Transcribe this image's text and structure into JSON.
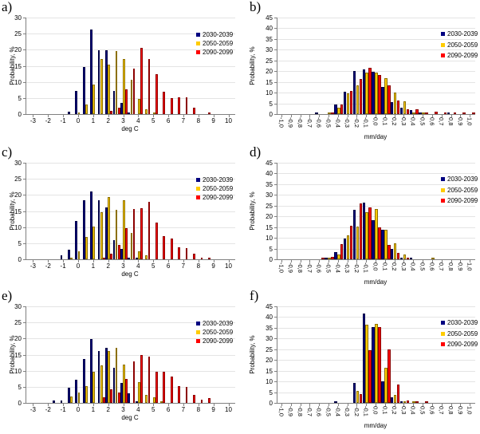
{
  "figure": {
    "background": "#FFFFFF",
    "legend_labels": [
      "2030-2039",
      "2050-2059",
      "2090-2099"
    ],
    "series_colors": [
      "#000080",
      "#FFCC00",
      "#FF0000"
    ],
    "grid_color": "#E4E4E4",
    "axis_color": "#808080",
    "ylabel": "Probability, %"
  },
  "chart_data": [
    {
      "id": "a",
      "panel_label": "a)",
      "type": "bar",
      "title": "",
      "xlabel": "deg C",
      "ylabel": "Probability, %",
      "ylim": [
        0,
        30
      ],
      "ytick_step": 5,
      "xlim": [
        -3.5,
        10.4
      ],
      "grid": true,
      "xtick_rotated": false,
      "xtick_values": [
        -3,
        -2,
        -1,
        0,
        1,
        2,
        3,
        4,
        5,
        6,
        7,
        8,
        9,
        10
      ],
      "xtick_labels": [
        "-3",
        "-2",
        "-1",
        "0",
        "1",
        "2",
        "3",
        "4",
        "5",
        "6",
        "7",
        "8",
        "9",
        "10"
      ],
      "bin_centers": [
        -0.5,
        0,
        0.5,
        1,
        1.5,
        2,
        2.5,
        3,
        3.5,
        4,
        4.5,
        5,
        5.5,
        6,
        6.5,
        7,
        7.5,
        8,
        8.5
      ],
      "legend_position": "top-right",
      "series": [
        {
          "name": "2030-2039",
          "color": "#000080",
          "values": [
            0.7,
            7.3,
            14.6,
            26.2,
            19.8,
            19.8,
            7.1,
            3.6,
            0.6,
            0,
            0,
            0,
            0,
            0,
            0,
            0,
            0,
            0,
            0
          ]
        },
        {
          "name": "2050-2059",
          "color": "#FFCC00",
          "values": [
            0,
            0.3,
            3.0,
            9.3,
            17.0,
            15.5,
            19.5,
            17.2,
            10.7,
            4.6,
            1.6,
            0.3,
            0,
            0,
            0,
            0,
            0,
            0,
            0
          ]
        },
        {
          "name": "2090-2099",
          "color": "#FF0000",
          "values": [
            0,
            0,
            0,
            0,
            0,
            1.0,
            2.0,
            7.7,
            14.2,
            20.5,
            17.0,
            12.4,
            7.0,
            4.9,
            5.3,
            5.1,
            1.9,
            0,
            0.4
          ]
        }
      ]
    },
    {
      "id": "b",
      "panel_label": "b)",
      "type": "bar",
      "title": "",
      "xlabel": "mm/day",
      "ylabel": "Probability, %",
      "ylim": [
        0,
        45
      ],
      "ytick_step": 5,
      "xlim": [
        -1.05,
        1.05
      ],
      "grid": true,
      "xtick_rotated": true,
      "xtick_values": [
        -1,
        -0.9,
        -0.8,
        -0.7,
        -0.6,
        -0.5,
        -0.4,
        -0.3,
        -0.2,
        -0.1,
        0,
        0.1,
        0.2,
        0.3,
        0.4,
        0.5,
        0.6,
        0.7,
        0.8,
        0.9,
        1
      ],
      "xtick_labels": [
        "-1,0",
        "-0,9",
        "-0,8",
        "-0,7",
        "-0,6",
        "-0,5",
        "-0,4",
        "-0,3",
        "-0,2",
        "-0,1",
        "0,0",
        "0,1",
        "0,2",
        "0,3",
        "0,4",
        "0,5",
        "0,6",
        "0,7",
        "0,8",
        "0,9",
        "1,0"
      ],
      "bin_centers": [
        -1,
        -0.9,
        -0.8,
        -0.7,
        -0.6,
        -0.5,
        -0.4,
        -0.3,
        -0.2,
        -0.1,
        0,
        0.1,
        0.2,
        0.3,
        0.4,
        0.5,
        0.6,
        0.7,
        0.8,
        0.9,
        1
      ],
      "legend_position": "top-right",
      "series": [
        {
          "name": "2030-2039",
          "color": "#000080",
          "values": [
            0,
            0,
            0,
            0,
            0.4,
            0,
            4.5,
            10.5,
            20.0,
            21.0,
            19.8,
            12.7,
            5.5,
            3.0,
            2.0,
            0.5,
            0,
            0,
            0.3,
            0,
            0
          ]
        },
        {
          "name": "2050-2059",
          "color": "#FFCC00",
          "values": [
            0,
            0,
            0,
            0,
            0,
            0.5,
            3.0,
            9.7,
            13.3,
            19.5,
            19.3,
            16.8,
            10.0,
            6.1,
            0.6,
            0.8,
            0,
            0,
            0,
            0,
            0
          ]
        },
        {
          "name": "2090-2099",
          "color": "#FF0000",
          "values": [
            0,
            0,
            0,
            0,
            0,
            0.7,
            4.6,
            10.8,
            16.3,
            21.6,
            18.4,
            13.3,
            6.4,
            2.4,
            2.1,
            0.9,
            1.2,
            0.9,
            0.4,
            0.3,
            0.2
          ]
        }
      ]
    },
    {
      "id": "c",
      "panel_label": "c)",
      "type": "bar",
      "title": "",
      "xlabel": "deg C",
      "ylabel": "Probability, %",
      "ylim": [
        0,
        30
      ],
      "ytick_step": 5,
      "xlim": [
        -3.5,
        10.4
      ],
      "grid": true,
      "xtick_rotated": false,
      "xtick_values": [
        -3,
        -2,
        -1,
        0,
        1,
        2,
        3,
        4,
        5,
        6,
        7,
        8,
        9,
        10
      ],
      "xtick_labels": [
        "-3",
        "-2",
        "-1",
        "0",
        "1",
        "2",
        "3",
        "4",
        "5",
        "6",
        "7",
        "8",
        "9",
        "10"
      ],
      "bin_centers": [
        -1,
        -0.5,
        0,
        0.5,
        1,
        1.5,
        2,
        2.5,
        3,
        3.5,
        4,
        4.5,
        5,
        5.5,
        6,
        6.5,
        7,
        7.5,
        8,
        8.5
      ],
      "legend_position": "top-right",
      "series": [
        {
          "name": "2030-2039",
          "color": "#000080",
          "values": [
            1.2,
            3.0,
            12.0,
            18.4,
            21.2,
            18.4,
            16.1,
            5.9,
            3.2,
            0.4,
            0.3,
            0,
            0,
            0,
            0,
            0,
            0,
            0,
            0,
            0
          ]
        },
        {
          "name": "2050-2059",
          "color": "#FFCC00",
          "values": [
            0,
            0.3,
            2.6,
            7.0,
            10.1,
            14.6,
            19.4,
            15.4,
            18.4,
            8.2,
            2.6,
            1.2,
            0,
            0,
            0,
            0,
            0,
            0,
            0,
            0
          ]
        },
        {
          "name": "2090-2099",
          "color": "#FF0000",
          "values": [
            0,
            0,
            0,
            0,
            0,
            0.5,
            1.8,
            4.4,
            9.6,
            15.6,
            15.8,
            17.9,
            11.4,
            7.3,
            6.4,
            3.8,
            3.4,
            1.8,
            0.3,
            0.2
          ]
        }
      ]
    },
    {
      "id": "d",
      "panel_label": "d)",
      "type": "bar",
      "title": "",
      "xlabel": "mm/day",
      "ylabel": "Probability, %",
      "ylim": [
        0,
        45
      ],
      "ytick_step": 5,
      "xlim": [
        -1.05,
        1.05
      ],
      "grid": true,
      "xtick_rotated": true,
      "xtick_values": [
        -1,
        -0.9,
        -0.8,
        -0.7,
        -0.6,
        -0.5,
        -0.4,
        -0.3,
        -0.2,
        -0.1,
        0,
        0.1,
        0.2,
        0.3,
        0.4,
        0.5,
        0.6,
        0.7,
        0.8,
        0.9,
        1
      ],
      "xtick_labels": [
        "-1,0",
        "-0,9",
        "-0,8",
        "-0,7",
        "-0,6",
        "-0,5",
        "-0,4",
        "-0,3",
        "-0,2",
        "-0,1",
        "0,0",
        "0,1",
        "0,2",
        "0,3",
        "0,4",
        "0,5",
        "0,6",
        "0,7",
        "0,8",
        "0,9",
        "1,0"
      ],
      "bin_centers": [
        -1,
        -0.9,
        -0.8,
        -0.7,
        -0.6,
        -0.5,
        -0.4,
        -0.3,
        -0.2,
        -0.1,
        0,
        0.1,
        0.2,
        0.3,
        0.4,
        0.5,
        0.6,
        0.7,
        0.8,
        0.9,
        1
      ],
      "legend_position": "top-right",
      "series": [
        {
          "name": "2030-2039",
          "color": "#000080",
          "values": [
            0,
            0,
            0,
            0,
            0,
            0.5,
            3.2,
            9.7,
            22.9,
            26.3,
            18.1,
            13.7,
            5.0,
            0.7,
            0.5,
            0,
            0,
            0,
            0,
            0,
            0
          ]
        },
        {
          "name": "2050-2059",
          "color": "#FFCC00",
          "values": [
            0,
            0,
            0,
            0,
            0,
            0.4,
            2.2,
            11.3,
            15.4,
            22.1,
            23.5,
            13.9,
            7.4,
            2.4,
            0,
            0,
            0.4,
            0,
            0,
            0,
            0
          ]
        },
        {
          "name": "2090-2099",
          "color": "#FF0000",
          "values": [
            0,
            0,
            0,
            0,
            0.5,
            1.0,
            7.2,
            15.5,
            26.0,
            24.3,
            14.9,
            6.7,
            2.9,
            0.7,
            0,
            0,
            0,
            0,
            0,
            0,
            0
          ]
        }
      ]
    },
    {
      "id": "e",
      "panel_label": "e)",
      "type": "bar",
      "title": "",
      "xlabel": "deg C",
      "ylabel": "Probability, %",
      "ylim": [
        0,
        30
      ],
      "ytick_step": 5,
      "xlim": [
        -3.5,
        10.4
      ],
      "grid": true,
      "xtick_rotated": false,
      "xtick_values": [
        -3,
        -2,
        -1,
        0,
        1,
        2,
        3,
        4,
        5,
        6,
        7,
        8,
        9,
        10
      ],
      "xtick_labels": [
        "-3",
        "-2",
        "-1",
        "0",
        "1",
        "2",
        "3",
        "4",
        "5",
        "6",
        "7",
        "8",
        "9",
        "10"
      ],
      "bin_centers": [
        -1.5,
        -1,
        -0.5,
        0,
        0.5,
        1,
        1.5,
        2,
        2.5,
        3,
        3.5,
        4,
        4.5,
        5,
        5.5,
        6,
        6.5,
        7,
        7.5,
        8,
        8.5
      ],
      "legend_position": "top-right",
      "series": [
        {
          "name": "2030-2039",
          "color": "#000080",
          "values": [
            0.8,
            0.7,
            4.6,
            7.3,
            13.7,
            19.8,
            16.1,
            17.1,
            10.9,
            6.3,
            3.0,
            0.4,
            0,
            0,
            0,
            0,
            0,
            0,
            0,
            0,
            0
          ]
        },
        {
          "name": "2050-2059",
          "color": "#FFCC00",
          "values": [
            0,
            0,
            2.0,
            3.3,
            5.1,
            9.6,
            11.6,
            16.2,
            17.2,
            12.0,
            0,
            6.4,
            2.4,
            1.8,
            0.4,
            0,
            0,
            0,
            0,
            0,
            0
          ]
        },
        {
          "name": "2090-2099",
          "color": "#FF0000",
          "values": [
            0,
            0,
            0,
            0,
            0,
            0,
            1.7,
            4.3,
            3.3,
            7.5,
            12.8,
            14.8,
            14.3,
            9.6,
            9.8,
            8.1,
            5.2,
            4.9,
            2.5,
            1.0,
            1.6
          ]
        }
      ]
    },
    {
      "id": "f",
      "panel_label": "f)",
      "type": "bar",
      "title": "",
      "xlabel": "mm/day",
      "ylabel": "Probability, %",
      "ylim": [
        0,
        45
      ],
      "ytick_step": 5,
      "xlim": [
        -1.05,
        1.05
      ],
      "grid": true,
      "xtick_rotated": true,
      "xtick_values": [
        -1,
        -0.9,
        -0.8,
        -0.7,
        -0.6,
        -0.5,
        -0.4,
        -0.3,
        -0.2,
        -0.1,
        0,
        0.1,
        0.2,
        0.3,
        0.4,
        0.5,
        0.6,
        0.7,
        0.8,
        0.9,
        1
      ],
      "xtick_labels": [
        "-1,0",
        "-0,9",
        "-0,8",
        "-0,7",
        "-0,6",
        "-0,5",
        "-0,4",
        "-0,3",
        "-0,2",
        "-0,1",
        "0,0",
        "0,1",
        "0,2",
        "0,3",
        "0,4",
        "0,5",
        "0,6",
        "0,7",
        "0,8",
        "0,9",
        "1,0"
      ],
      "bin_centers": [
        -1,
        -0.9,
        -0.8,
        -0.7,
        -0.6,
        -0.5,
        -0.4,
        -0.3,
        -0.2,
        -0.1,
        0,
        0.1,
        0.2,
        0.3,
        0.4,
        0.5,
        0.6,
        0.7,
        0.8,
        0.9,
        1
      ],
      "legend_position": "top-right",
      "series": [
        {
          "name": "2030-2039",
          "color": "#000080",
          "values": [
            0,
            0,
            0,
            0,
            0,
            0,
            0.4,
            0,
            9.4,
            41.8,
            35.4,
            9.9,
            2.5,
            0.5,
            0,
            0,
            0,
            0,
            0,
            0,
            0
          ]
        },
        {
          "name": "2050-2059",
          "color": "#FFCC00",
          "values": [
            0,
            0,
            0,
            0,
            0,
            0,
            0,
            0,
            5.5,
            36.3,
            36.7,
            16.2,
            3.7,
            0.7,
            0.3,
            0,
            0,
            0,
            0,
            0,
            0
          ]
        },
        {
          "name": "2090-2099",
          "color": "#FF0000",
          "values": [
            0,
            0,
            0,
            0,
            0,
            0,
            0,
            0,
            4.0,
            24.6,
            35.5,
            25.0,
            8.6,
            1.3,
            0.4,
            0.5,
            0,
            0,
            0,
            0,
            0
          ]
        }
      ]
    }
  ]
}
